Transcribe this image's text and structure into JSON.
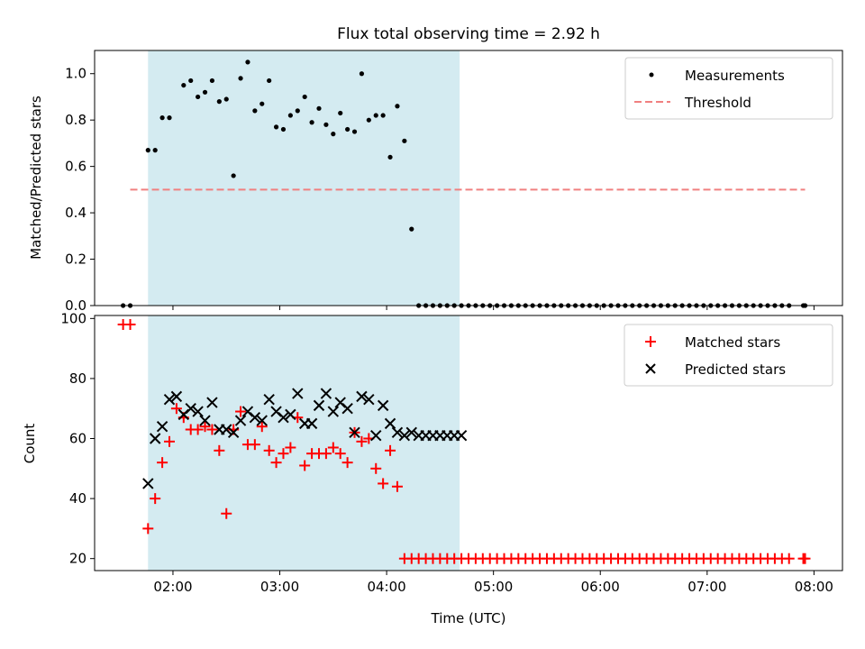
{
  "figure": {
    "title": "Flux total observing time = 2.92 h"
  },
  "chart_data": [
    {
      "type": "scatter",
      "ylabel": "Matched/Predicted stars",
      "xlabel": "",
      "xlim": [
        "01:16",
        "08:16"
      ],
      "ylim": [
        0,
        1.1
      ],
      "yticks": [
        0.0,
        0.2,
        0.4,
        0.6,
        0.8,
        1.0
      ],
      "ytick_labels": [
        "0.0",
        "0.2",
        "0.4",
        "0.6",
        "0.8",
        "1.0"
      ],
      "xticks": [
        "02:00",
        "03:00",
        "04:00",
        "05:00",
        "06:00",
        "07:00",
        "08:00"
      ],
      "xtick_labels_shown": false,
      "shaded_span": {
        "x": [
          "01:46",
          "04:41"
        ],
        "color": "#d4ebf1"
      },
      "legend": {
        "placement": "upper right",
        "entries": [
          "Measurements",
          "Threshold"
        ]
      },
      "series": [
        {
          "name": "Measurements",
          "marker": "dot",
          "color": "#000000",
          "x": [
            "01:32",
            "01:36",
            "01:46",
            "01:50",
            "01:54",
            "01:58",
            "02:06",
            "02:10",
            "02:14",
            "02:18",
            "02:22",
            "02:26",
            "02:30",
            "02:34",
            "02:38",
            "02:42",
            "02:46",
            "02:50",
            "02:54",
            "02:58",
            "03:02",
            "03:06",
            "03:10",
            "03:14",
            "03:18",
            "03:22",
            "03:26",
            "03:30",
            "03:34",
            "03:38",
            "03:42",
            "03:46",
            "03:50",
            "03:54",
            "03:58",
            "04:02",
            "04:06",
            "04:10",
            "04:14",
            "04:18",
            "04:22",
            "04:26",
            "04:30",
            "04:34",
            "04:38",
            "04:42",
            "04:46",
            "04:50",
            "04:54",
            "04:58",
            "05:02",
            "05:06",
            "05:10",
            "05:14",
            "05:18",
            "05:22",
            "05:26",
            "05:30",
            "05:34",
            "05:38",
            "05:42",
            "05:46",
            "05:50",
            "05:54",
            "05:58",
            "06:02",
            "06:06",
            "06:10",
            "06:14",
            "06:18",
            "06:22",
            "06:26",
            "06:30",
            "06:34",
            "06:38",
            "06:42",
            "06:46",
            "06:50",
            "06:54",
            "06:58",
            "07:02",
            "07:06",
            "07:10",
            "07:14",
            "07:18",
            "07:22",
            "07:26",
            "07:30",
            "07:34",
            "07:38",
            "07:42",
            "07:46",
            "07:54",
            "07:55"
          ],
          "y": [
            0.0,
            0.0,
            0.67,
            0.67,
            0.81,
            0.81,
            0.95,
            0.97,
            0.9,
            0.92,
            0.97,
            0.88,
            0.89,
            0.56,
            0.98,
            1.05,
            0.84,
            0.87,
            0.97,
            0.77,
            0.76,
            0.82,
            0.84,
            0.9,
            0.79,
            0.85,
            0.78,
            0.74,
            0.83,
            0.76,
            0.75,
            1.0,
            0.8,
            0.82,
            0.82,
            0.64,
            0.86,
            0.71,
            0.33,
            0.0,
            0.0,
            0.0,
            0.0,
            0.0,
            0.0,
            0.0,
            0.0,
            0.0,
            0.0,
            0.0,
            0.0,
            0.0,
            0.0,
            0.0,
            0.0,
            0.0,
            0.0,
            0.0,
            0.0,
            0.0,
            0.0,
            0.0,
            0.0,
            0.0,
            0.0,
            0.0,
            0.0,
            0.0,
            0.0,
            0.0,
            0.0,
            0.0,
            0.0,
            0.0,
            0.0,
            0.0,
            0.0,
            0.0,
            0.0,
            0.0,
            0.0,
            0.0,
            0.0,
            0.0,
            0.0,
            0.0,
            0.0,
            0.0,
            0.0,
            0.0,
            0.0,
            0.0,
            0.0,
            0.0
          ]
        },
        {
          "name": "Threshold",
          "style": "dashed-line",
          "color": "#f08080",
          "x": [
            "01:36",
            "07:55"
          ],
          "y": [
            0.5,
            0.5
          ]
        }
      ]
    },
    {
      "type": "scatter",
      "ylabel": "Count",
      "xlabel": "Time (UTC)",
      "xlim": [
        "01:16",
        "08:16"
      ],
      "ylim": [
        16,
        101
      ],
      "yticks": [
        20,
        40,
        60,
        80,
        100
      ],
      "ytick_labels": [
        "20",
        "40",
        "60",
        "80",
        "100"
      ],
      "xticks": [
        "02:00",
        "03:00",
        "04:00",
        "05:00",
        "06:00",
        "07:00",
        "08:00"
      ],
      "xtick_labels": [
        "02:00",
        "03:00",
        "04:00",
        "05:00",
        "06:00",
        "07:00",
        "08:00"
      ],
      "shaded_span": {
        "x": [
          "01:46",
          "04:41"
        ],
        "color": "#d4ebf1"
      },
      "legend": {
        "placement": "upper right",
        "entries": [
          "Matched stars",
          "Predicted stars"
        ]
      },
      "series": [
        {
          "name": "Matched stars",
          "marker": "plus",
          "color": "#ff0000",
          "x": [
            "01:32",
            "01:36",
            "01:46",
            "01:50",
            "01:54",
            "01:58",
            "02:02",
            "02:06",
            "02:10",
            "02:14",
            "02:18",
            "02:22",
            "02:26",
            "02:30",
            "02:34",
            "02:38",
            "02:42",
            "02:46",
            "02:50",
            "02:54",
            "02:58",
            "03:02",
            "03:06",
            "03:10",
            "03:14",
            "03:18",
            "03:22",
            "03:26",
            "03:30",
            "03:34",
            "03:38",
            "03:42",
            "03:46",
            "03:50",
            "03:54",
            "03:58",
            "04:02",
            "04:06",
            "04:10",
            "04:14",
            "04:18",
            "04:22",
            "04:26",
            "04:30",
            "04:34",
            "04:38",
            "04:42",
            "04:46",
            "04:50",
            "04:54",
            "04:58",
            "05:02",
            "05:06",
            "05:10",
            "05:14",
            "05:18",
            "05:22",
            "05:26",
            "05:30",
            "05:34",
            "05:38",
            "05:42",
            "05:46",
            "05:50",
            "05:54",
            "05:58",
            "06:02",
            "06:06",
            "06:10",
            "06:14",
            "06:18",
            "06:22",
            "06:26",
            "06:30",
            "06:34",
            "06:38",
            "06:42",
            "06:46",
            "06:50",
            "06:54",
            "06:58",
            "07:02",
            "07:06",
            "07:10",
            "07:14",
            "07:18",
            "07:22",
            "07:26",
            "07:30",
            "07:34",
            "07:38",
            "07:42",
            "07:46",
            "07:54",
            "07:55"
          ],
          "y": [
            98,
            98,
            30,
            40,
            52,
            59,
            70,
            67,
            63,
            63,
            64,
            63,
            56,
            35,
            63,
            69,
            58,
            58,
            64,
            56,
            52,
            55,
            57,
            67,
            51,
            55,
            55,
            55,
            57,
            55,
            52,
            62,
            59,
            60,
            50,
            45,
            56,
            44,
            20,
            20,
            20,
            20,
            20,
            20,
            20,
            20,
            20,
            20,
            20,
            20,
            20,
            20,
            20,
            20,
            20,
            20,
            20,
            20,
            20,
            20,
            20,
            20,
            20,
            20,
            20,
            20,
            20,
            20,
            20,
            20,
            20,
            20,
            20,
            20,
            20,
            20,
            20,
            20,
            20,
            20,
            20,
            20,
            20,
            20,
            20,
            20,
            20,
            20,
            20,
            20,
            20,
            20,
            20,
            20,
            20
          ]
        },
        {
          "name": "Predicted stars",
          "marker": "x",
          "color": "#000000",
          "x": [
            "01:46",
            "01:50",
            "01:54",
            "01:58",
            "02:02",
            "02:06",
            "02:10",
            "02:14",
            "02:18",
            "02:22",
            "02:26",
            "02:30",
            "02:34",
            "02:38",
            "02:42",
            "02:46",
            "02:50",
            "02:54",
            "02:58",
            "03:02",
            "03:06",
            "03:10",
            "03:14",
            "03:18",
            "03:22",
            "03:26",
            "03:30",
            "03:34",
            "03:38",
            "03:42",
            "03:46",
            "03:50",
            "03:54",
            "03:58",
            "04:02",
            "04:06",
            "04:10",
            "04:14",
            "04:18",
            "04:22",
            "04:26",
            "04:30",
            "04:34",
            "04:38",
            "04:42"
          ],
          "y": [
            45,
            60,
            64,
            73,
            74,
            68,
            70,
            69,
            66,
            72,
            63,
            63,
            62,
            66,
            69,
            67,
            66,
            73,
            69,
            67,
            68,
            75,
            65,
            65,
            71,
            75,
            69,
            72,
            70,
            62,
            74,
            73,
            61,
            71,
            65,
            62,
            61,
            62,
            61,
            61,
            61,
            61,
            61,
            61,
            61
          ]
        }
      ]
    }
  ]
}
